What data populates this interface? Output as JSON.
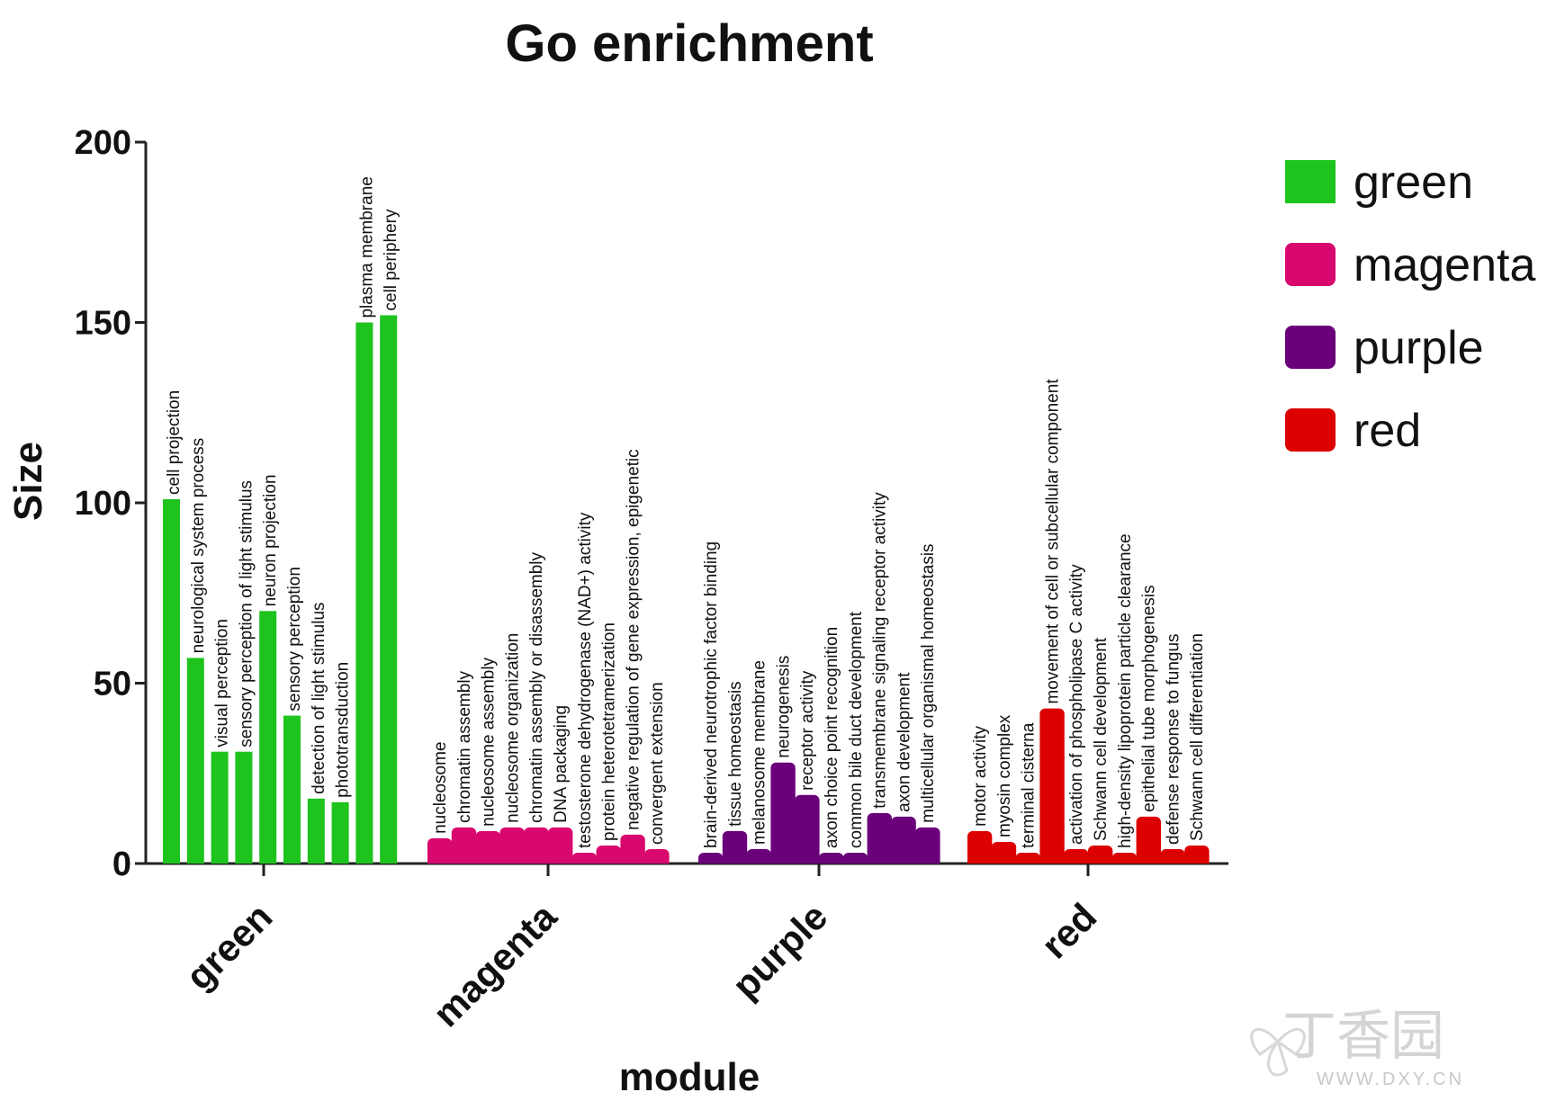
{
  "chart_data": {
    "type": "bar",
    "title": "Go enrichment",
    "xlabel": "module",
    "ylabel": "Size",
    "ylim": [
      0,
      200
    ],
    "yticks": [
      0,
      50,
      100,
      150,
      200
    ],
    "legend_position": "right",
    "groups": [
      {
        "name": "green",
        "color": "#1ec31e",
        "bars": [
          {
            "label": "cell projection",
            "value": 101
          },
          {
            "label": "neurological system process",
            "value": 57
          },
          {
            "label": "visual perception",
            "value": 31
          },
          {
            "label": "sensory perception of light stimulus",
            "value": 31
          },
          {
            "label": "neuron projection",
            "value": 70
          },
          {
            "label": "sensory perception",
            "value": 41
          },
          {
            "label": "detection of light stimulus",
            "value": 18
          },
          {
            "label": "phototransduction",
            "value": 17
          },
          {
            "label": "plasma membrane",
            "value": 150
          },
          {
            "label": "cell periphery",
            "value": 152
          }
        ]
      },
      {
        "name": "magenta",
        "color": "#d8086e",
        "bars": [
          {
            "label": "nucleosome",
            "value": 7
          },
          {
            "label": "chromatin assembly",
            "value": 10
          },
          {
            "label": "nucleosome assembly",
            "value": 9
          },
          {
            "label": "nucleosome organization",
            "value": 10
          },
          {
            "label": "chromatin assembly or disassembly",
            "value": 10
          },
          {
            "label": "DNA packaging",
            "value": 10
          },
          {
            "label": "testosterone dehydrogenase (NAD+) activity",
            "value": 3
          },
          {
            "label": "protein heterotetramerization",
            "value": 5
          },
          {
            "label": "negative regulation of gene expression, epigenetic",
            "value": 8
          },
          {
            "label": "convergent extension",
            "value": 4
          }
        ]
      },
      {
        "name": "purple",
        "color": "#6a007a",
        "bars": [
          {
            "label": "brain-derived neurotrophic factor binding",
            "value": 3
          },
          {
            "label": "tissue homeostasis",
            "value": 9
          },
          {
            "label": "melanosome membrane",
            "value": 4
          },
          {
            "label": "neurogenesis",
            "value": 28
          },
          {
            "label": "receptor activity",
            "value": 19
          },
          {
            "label": "axon choice point recognition",
            "value": 3
          },
          {
            "label": "common bile duct development",
            "value": 3
          },
          {
            "label": "transmembrane signaling receptor activity",
            "value": 14
          },
          {
            "label": "axon development",
            "value": 13
          },
          {
            "label": "multicellular organismal homeostasis",
            "value": 10
          }
        ]
      },
      {
        "name": "red",
        "color": "#dd0000",
        "bars": [
          {
            "label": "motor activity",
            "value": 9
          },
          {
            "label": "myosin complex",
            "value": 6
          },
          {
            "label": "terminal cisterna",
            "value": 3
          },
          {
            "label": "movement of cell or subcellular component",
            "value": 43
          },
          {
            "label": "activation of phospholipase C activity",
            "value": 4
          },
          {
            "label": "Schwann cell development",
            "value": 5
          },
          {
            "label": "high-density lipoprotein particle clearance",
            "value": 3
          },
          {
            "label": "epithelial tube morphogenesis",
            "value": 13
          },
          {
            "label": "defense response to fungus",
            "value": 4
          },
          {
            "label": "Schwann cell differentiation",
            "value": 5
          }
        ]
      }
    ]
  },
  "watermark": {
    "cn_text": "丁香园",
    "url_text": "WWW.DXY.CN",
    "color": "#cccccc"
  }
}
